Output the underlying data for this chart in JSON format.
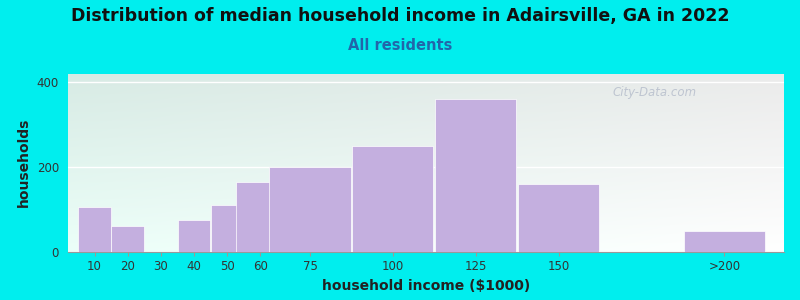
{
  "title": "Distribution of median household income in Adairsville, GA in 2022",
  "subtitle": "All residents",
  "xlabel": "household income ($1000)",
  "ylabel": "households",
  "title_fontsize": 12.5,
  "subtitle_fontsize": 10.5,
  "label_fontsize": 10,
  "background_outer": "#00EEEE",
  "bar_color": "#C4AFDF",
  "bar_edge_color": "#FFFFFF",
  "categories": [
    "10",
    "20",
    "30",
    "40",
    "50",
    "60",
    "75",
    "100",
    "125",
    "150",
    ">200"
  ],
  "values": [
    105,
    62,
    0,
    75,
    110,
    165,
    200,
    250,
    360,
    160,
    50
  ],
  "ylim": [
    0,
    420
  ],
  "yticks": [
    0,
    200,
    400
  ],
  "watermark": "City-Data.com"
}
